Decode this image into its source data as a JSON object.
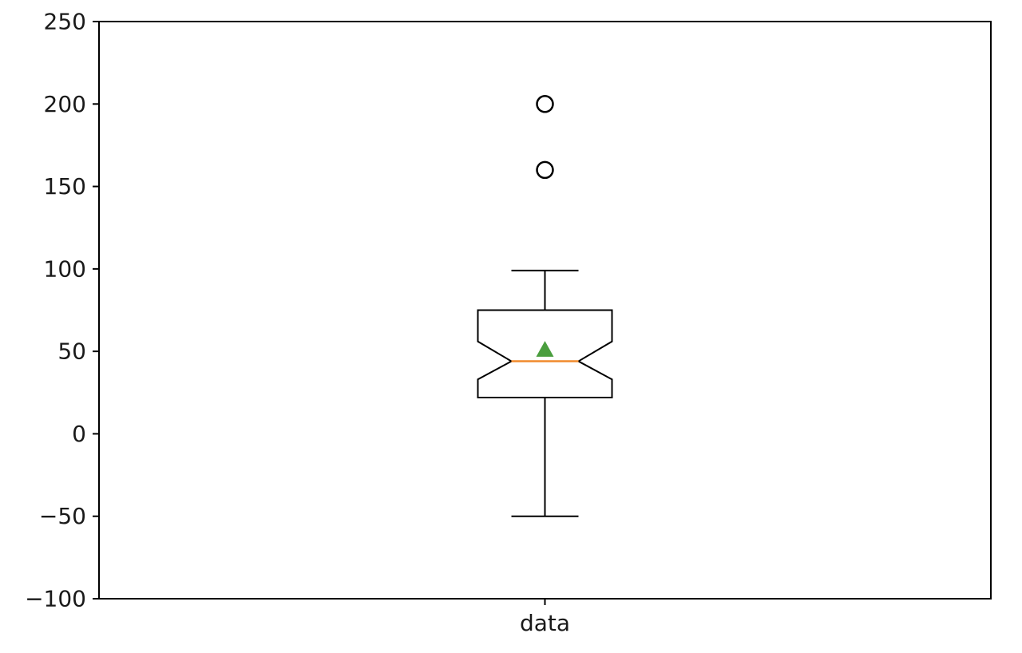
{
  "chart_data": {
    "type": "box",
    "title": "",
    "xlabel": "",
    "ylabel": "",
    "categories": [
      "data"
    ],
    "ylim": [
      -100,
      250
    ],
    "yticks": [
      -100,
      -50,
      0,
      50,
      100,
      150,
      200,
      250
    ],
    "ytick_labels": [
      "−100",
      "−50",
      "0",
      "50",
      "100",
      "150",
      "200",
      "250"
    ],
    "grid": false,
    "notched": true,
    "show_means": true,
    "boxes": [
      {
        "name": "data",
        "whislo": -50,
        "q1": 22,
        "median": 44,
        "q3": 75,
        "whishi": 99,
        "notch_low": 33,
        "notch_high": 56,
        "mean": 51,
        "fliers": [
          160,
          200
        ]
      }
    ],
    "colors": {
      "box": "#000000",
      "median": "#f08a2c",
      "mean": "#4a9e3e",
      "flier": "#000000",
      "axes": "#000000"
    }
  }
}
